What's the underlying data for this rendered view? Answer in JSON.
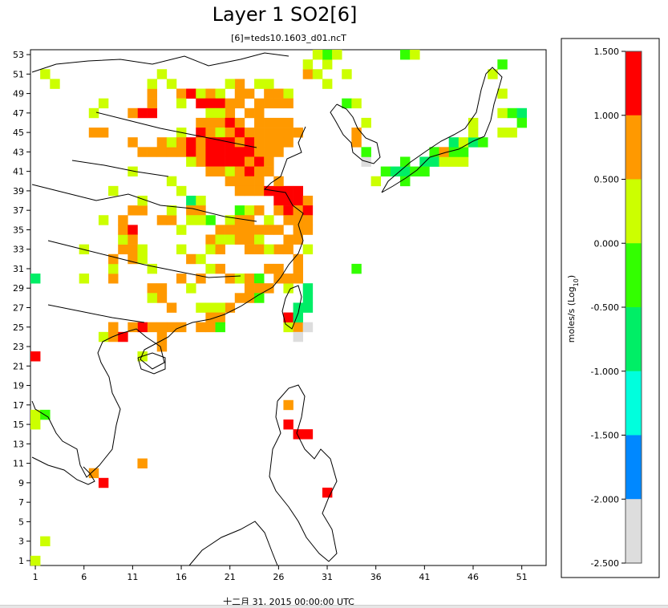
{
  "title": "Layer 1 SO2[6]",
  "subtitle": "[6]=teds10.1603_d01.ncT",
  "timestamp": "十二月 31, 2015 00:00:00 UTC",
  "legend": {
    "unit_label": "moles/s (Log",
    "unit_sub": "10",
    "unit_close": ")",
    "ticks": [
      "1.500",
      "1.000",
      "0.500",
      "0.000",
      "-0.500",
      "-1.000",
      "-1.500",
      "-2.000",
      "-2.500"
    ],
    "bins": [
      {
        "min": 1.0,
        "max": 1.5,
        "color": "#ff0000"
      },
      {
        "min": 0.5,
        "max": 1.0,
        "color": "#ff9900"
      },
      {
        "min": 0.0,
        "max": 0.5,
        "color": "#ccff00"
      },
      {
        "min": -0.5,
        "max": 0.0,
        "color": "#33ff00"
      },
      {
        "min": -1.0,
        "max": -0.5,
        "color": "#00ee66"
      },
      {
        "min": -1.5,
        "max": -1.0,
        "color": "#00ffdd"
      },
      {
        "min": -2.0,
        "max": -1.5,
        "color": "#0088ff"
      },
      {
        "min": -2.5,
        "max": -2.0,
        "color": "#dddddd"
      }
    ]
  },
  "chart_data": {
    "type": "heatmap",
    "x_ticks": [
      "1",
      "6",
      "11",
      "16",
      "21",
      "26",
      "31",
      "36",
      "41",
      "46",
      "51"
    ],
    "y_ticks": [
      "1",
      "3",
      "5",
      "7",
      "9",
      "11",
      "13",
      "15",
      "17",
      "19",
      "21",
      "23",
      "25",
      "27",
      "29",
      "31",
      "33",
      "35",
      "37",
      "39",
      "41",
      "43",
      "45",
      "47",
      "49",
      "51",
      "53"
    ],
    "x_range": [
      1,
      53
    ],
    "y_range": [
      1,
      53
    ],
    "cells": [
      [
        1,
        1,
        0.2
      ],
      [
        2,
        3,
        0.2
      ],
      [
        1,
        15,
        0.3
      ],
      [
        1,
        16,
        0.3
      ],
      [
        2,
        16,
        -0.3
      ],
      [
        1,
        22,
        1.2
      ],
      [
        1,
        30,
        -0.7
      ],
      [
        3,
        50,
        0.2
      ],
      [
        2,
        51,
        0.3
      ],
      [
        6,
        30,
        0.3
      ],
      [
        6,
        33,
        0.3
      ],
      [
        7,
        45,
        0.7
      ],
      [
        8,
        45,
        0.7
      ],
      [
        7,
        47,
        0.2
      ],
      [
        7,
        10,
        0.7
      ],
      [
        8,
        9,
        1.2
      ],
      [
        8,
        36,
        0.2
      ],
      [
        8,
        48,
        0.3
      ],
      [
        8,
        24,
        0.3
      ],
      [
        9,
        24,
        0.7
      ],
      [
        9,
        25,
        0.7
      ],
      [
        9,
        30,
        0.7
      ],
      [
        9,
        31,
        0.2
      ],
      [
        9,
        32,
        0.7
      ],
      [
        10,
        33,
        0.7
      ],
      [
        10,
        34,
        0.3
      ],
      [
        10,
        35,
        0.7
      ],
      [
        10,
        36,
        0.7
      ],
      [
        11,
        35,
        1.2
      ],
      [
        11,
        34,
        0.7
      ],
      [
        11,
        33,
        0.7
      ],
      [
        11,
        32,
        0.7
      ],
      [
        11,
        37,
        0.7
      ],
      [
        12,
        37,
        0.7
      ],
      [
        12,
        33,
        0.3
      ],
      [
        12,
        32,
        0.3
      ],
      [
        9,
        39,
        0.2
      ],
      [
        11,
        44,
        0.7
      ],
      [
        12,
        43,
        0.7
      ],
      [
        13,
        43,
        0.7
      ],
      [
        14,
        43,
        0.7
      ],
      [
        15,
        43,
        0.7
      ],
      [
        16,
        43,
        0.7
      ],
      [
        14,
        44,
        0.7
      ],
      [
        15,
        44,
        0.3
      ],
      [
        16,
        45,
        0.3
      ],
      [
        11,
        41,
        0.3
      ],
      [
        12,
        47,
        1.2
      ],
      [
        13,
        47,
        1.2
      ],
      [
        11,
        47,
        0.7
      ],
      [
        13,
        48,
        0.7
      ],
      [
        13,
        49,
        0.7
      ],
      [
        13,
        50,
        0.2
      ],
      [
        14,
        51,
        0.3
      ],
      [
        15,
        50,
        0.3
      ],
      [
        16,
        49,
        0.7
      ],
      [
        16,
        48,
        0.3
      ],
      [
        17,
        49,
        1.2
      ],
      [
        18,
        49,
        0.3
      ],
      [
        19,
        49,
        0.7
      ],
      [
        20,
        49,
        0.3
      ],
      [
        18,
        48,
        1.2
      ],
      [
        19,
        48,
        1.2
      ],
      [
        20,
        48,
        1.2
      ],
      [
        21,
        48,
        0.7
      ],
      [
        22,
        49,
        0.7
      ],
      [
        23,
        49,
        0.7
      ],
      [
        22,
        48,
        0.7
      ],
      [
        21,
        47,
        0.7
      ],
      [
        20,
        47,
        0.2
      ],
      [
        19,
        47,
        0.2
      ],
      [
        18,
        46,
        0.7
      ],
      [
        19,
        46,
        0.7
      ],
      [
        20,
        46,
        0.7
      ],
      [
        21,
        46,
        1.2
      ],
      [
        22,
        46,
        0.7
      ],
      [
        23,
        47,
        0.7
      ],
      [
        24,
        47,
        0.7
      ],
      [
        24,
        48,
        0.7
      ],
      [
        25,
        48,
        0.7
      ],
      [
        25,
        49,
        0.7
      ],
      [
        26,
        49,
        0.7
      ],
      [
        26,
        48,
        0.7
      ],
      [
        27,
        49,
        0.3
      ],
      [
        27,
        48,
        0.7
      ],
      [
        25,
        50,
        0.3
      ],
      [
        24,
        50,
        0.3
      ],
      [
        22,
        50,
        0.7
      ],
      [
        21,
        50,
        0.3
      ],
      [
        18,
        45,
        1.2
      ],
      [
        19,
        45,
        0.7
      ],
      [
        20,
        45,
        0.3
      ],
      [
        21,
        45,
        0.7
      ],
      [
        22,
        45,
        1.2
      ],
      [
        23,
        45,
        0.7
      ],
      [
        24,
        45,
        0.7
      ],
      [
        25,
        45,
        0.7
      ],
      [
        26,
        45,
        0.7
      ],
      [
        27,
        45,
        0.7
      ],
      [
        28,
        45,
        0.7
      ],
      [
        26,
        46,
        0.7
      ],
      [
        27,
        46,
        0.7
      ],
      [
        25,
        46,
        0.7
      ],
      [
        24,
        46,
        0.7
      ],
      [
        16,
        44,
        0.7
      ],
      [
        17,
        44,
        1.2
      ],
      [
        18,
        44,
        0.7
      ],
      [
        19,
        44,
        1.2
      ],
      [
        20,
        44,
        1.2
      ],
      [
        21,
        44,
        1.2
      ],
      [
        22,
        44,
        0.7
      ],
      [
        23,
        44,
        1.2
      ],
      [
        24,
        44,
        0.7
      ],
      [
        25,
        44,
        0.7
      ],
      [
        26,
        44,
        0.7
      ],
      [
        27,
        44,
        0.7
      ],
      [
        17,
        43,
        1.2
      ],
      [
        18,
        43,
        0.7
      ],
      [
        19,
        43,
        1.2
      ],
      [
        20,
        43,
        1.2
      ],
      [
        21,
        43,
        1.2
      ],
      [
        22,
        43,
        1.2
      ],
      [
        23,
        43,
        1.2
      ],
      [
        24,
        43,
        0.7
      ],
      [
        25,
        43,
        0.7
      ],
      [
        26,
        43,
        0.7
      ],
      [
        18,
        42,
        0.7
      ],
      [
        19,
        42,
        1.2
      ],
      [
        20,
        42,
        1.2
      ],
      [
        21,
        42,
        1.2
      ],
      [
        22,
        42,
        1.2
      ],
      [
        23,
        42,
        0.7
      ],
      [
        24,
        42,
        1.2
      ],
      [
        25,
        42,
        0.7
      ],
      [
        19,
        41,
        0.7
      ],
      [
        20,
        41,
        0.7
      ],
      [
        21,
        41,
        0.3
      ],
      [
        22,
        41,
        0.7
      ],
      [
        23,
        41,
        1.2
      ],
      [
        24,
        41,
        0.7
      ],
      [
        25,
        41,
        0.7
      ],
      [
        21,
        40,
        0.7
      ],
      [
        22,
        40,
        0.7
      ],
      [
        23,
        40,
        0.7
      ],
      [
        24,
        40,
        0.7
      ],
      [
        22,
        39,
        0.7
      ],
      [
        23,
        39,
        0.7
      ],
      [
        24,
        39,
        0.7
      ],
      [
        25,
        39,
        1.2
      ],
      [
        26,
        39,
        1.2
      ],
      [
        27,
        39,
        1.2
      ],
      [
        28,
        39,
        1.2
      ],
      [
        26,
        40,
        0.7
      ],
      [
        26,
        38,
        1.2
      ],
      [
        27,
        38,
        1.2
      ],
      [
        28,
        38,
        1.2
      ],
      [
        29,
        38,
        0.7
      ],
      [
        26,
        37,
        0.7
      ],
      [
        27,
        37,
        1.2
      ],
      [
        28,
        37,
        0.7
      ],
      [
        29,
        37,
        1.2
      ],
      [
        27,
        36,
        0.7
      ],
      [
        28,
        36,
        0.7
      ],
      [
        29,
        36,
        0.7
      ],
      [
        28,
        35,
        0.7
      ],
      [
        29,
        35,
        0.7
      ],
      [
        28,
        34,
        0.7
      ],
      [
        27,
        34,
        0.7
      ],
      [
        26,
        33,
        0.7
      ],
      [
        27,
        33,
        0.7
      ],
      [
        22,
        37,
        -0.3
      ],
      [
        23,
        37,
        0.3
      ],
      [
        24,
        37,
        0.7
      ],
      [
        21,
        36,
        0.3
      ],
      [
        22,
        36,
        0.7
      ],
      [
        23,
        36,
        0.7
      ],
      [
        25,
        36,
        0.2
      ],
      [
        20,
        35,
        0.7
      ],
      [
        21,
        35,
        0.7
      ],
      [
        22,
        35,
        0.7
      ],
      [
        23,
        35,
        0.7
      ],
      [
        24,
        35,
        0.7
      ],
      [
        25,
        35,
        0.7
      ],
      [
        26,
        35,
        0.7
      ],
      [
        19,
        34,
        0.7
      ],
      [
        20,
        34,
        0.3
      ],
      [
        21,
        34,
        0.3
      ],
      [
        22,
        34,
        0.7
      ],
      [
        23,
        34,
        0.7
      ],
      [
        24,
        34,
        0.3
      ],
      [
        19,
        33,
        0.3
      ],
      [
        20,
        33,
        0.7
      ],
      [
        23,
        33,
        0.7
      ],
      [
        24,
        33,
        0.7
      ],
      [
        25,
        33,
        0.3
      ],
      [
        17,
        38,
        -0.7
      ],
      [
        18,
        38,
        0.3
      ],
      [
        18,
        37,
        0.7
      ],
      [
        17,
        37,
        0.7
      ],
      [
        19,
        36,
        -0.3
      ],
      [
        18,
        36,
        0.3
      ],
      [
        17,
        36,
        0.3
      ],
      [
        16,
        35,
        0.2
      ],
      [
        16,
        33,
        0.3
      ],
      [
        17,
        32,
        0.7
      ],
      [
        18,
        32,
        0.3
      ],
      [
        19,
        31,
        0.3
      ],
      [
        20,
        31,
        0.7
      ],
      [
        21,
        30,
        0.7
      ],
      [
        22,
        30,
        0.3
      ],
      [
        23,
        30,
        0.7
      ],
      [
        24,
        30,
        -0.3
      ],
      [
        25,
        31,
        0.7
      ],
      [
        26,
        31,
        0.7
      ],
      [
        26,
        30,
        0.7
      ],
      [
        25,
        29,
        0.7
      ],
      [
        24,
        29,
        0.7
      ],
      [
        23,
        29,
        0.7
      ],
      [
        22,
        28,
        0.7
      ],
      [
        23,
        28,
        0.7
      ],
      [
        24,
        28,
        -0.3
      ],
      [
        21,
        27,
        0.7
      ],
      [
        20,
        27,
        0.3
      ],
      [
        19,
        27,
        0.3
      ],
      [
        18,
        27,
        0.3
      ],
      [
        19,
        26,
        0.7
      ],
      [
        20,
        26,
        0.7
      ],
      [
        18,
        25,
        0.7
      ],
      [
        19,
        25,
        0.7
      ],
      [
        20,
        25,
        -0.3
      ],
      [
        16,
        25,
        0.7
      ],
      [
        15,
        25,
        0.7
      ],
      [
        14,
        25,
        0.7
      ],
      [
        13,
        25,
        0.7
      ],
      [
        12,
        25,
        1.2
      ],
      [
        11,
        25,
        0.7
      ],
      [
        10,
        24,
        1.2
      ],
      [
        9,
        25,
        0.7
      ],
      [
        14,
        24,
        0.7
      ],
      [
        14,
        23,
        0.7
      ],
      [
        12,
        22,
        0.2
      ],
      [
        13,
        29,
        0.7
      ],
      [
        14,
        29,
        0.7
      ],
      [
        14,
        28,
        0.7
      ],
      [
        13,
        28,
        0.3
      ],
      [
        15,
        27,
        0.7
      ],
      [
        13,
        31,
        0.3
      ],
      [
        16,
        30,
        0.7
      ],
      [
        17,
        29,
        0.3
      ],
      [
        18,
        30,
        0.7
      ],
      [
        14,
        36,
        0.7
      ],
      [
        15,
        36,
        0.7
      ],
      [
        15,
        37,
        0.3
      ],
      [
        12,
        38,
        0.3
      ],
      [
        16,
        39,
        0.2
      ],
      [
        17,
        42,
        0.3
      ],
      [
        15,
        40,
        0.3
      ],
      [
        27,
        25,
        0.2
      ],
      [
        27,
        26,
        1.2
      ],
      [
        28,
        25,
        0.7
      ],
      [
        28,
        24,
        -2.2
      ],
      [
        29,
        25,
        -2.2
      ],
      [
        28,
        26,
        -0.7
      ],
      [
        28,
        27,
        -0.7
      ],
      [
        29,
        27,
        -0.7
      ],
      [
        29,
        28,
        -0.7
      ],
      [
        29,
        29,
        -0.7
      ],
      [
        27,
        29,
        0.3
      ],
      [
        27,
        30,
        0.7
      ],
      [
        28,
        30,
        0.7
      ],
      [
        28,
        31,
        0.7
      ],
      [
        28,
        32,
        0.7
      ],
      [
        29,
        33,
        0.3
      ],
      [
        34,
        31,
        -0.3
      ],
      [
        27,
        17,
        0.7
      ],
      [
        27,
        15,
        1.2
      ],
      [
        28,
        14,
        1.2
      ],
      [
        29,
        14,
        1.2
      ],
      [
        31,
        8,
        1.2
      ],
      [
        12,
        11,
        0.7
      ],
      [
        29,
        51,
        0.7
      ],
      [
        30,
        51,
        0.2
      ],
      [
        29,
        52,
        0.2
      ],
      [
        31,
        52,
        0.2
      ],
      [
        31,
        53,
        -0.3
      ],
      [
        32,
        53,
        0.3
      ],
      [
        30,
        53,
        0.3
      ],
      [
        31,
        50,
        0.3
      ],
      [
        33,
        51,
        0.2
      ],
      [
        33,
        48,
        -0.5
      ],
      [
        34,
        48,
        0.2
      ],
      [
        35,
        46,
        0.2
      ],
      [
        34,
        45,
        0.7
      ],
      [
        34,
        44,
        0.7
      ],
      [
        35,
        42,
        -2.2
      ],
      [
        35,
        43,
        -0.3
      ],
      [
        39,
        53,
        -0.3
      ],
      [
        40,
        53,
        0.2
      ],
      [
        37,
        41,
        -0.3
      ],
      [
        36,
        40,
        0.2
      ],
      [
        38,
        41,
        -0.7
      ],
      [
        39,
        41,
        -0.7
      ],
      [
        39,
        42,
        -0.3
      ],
      [
        39,
        40,
        -0.3
      ],
      [
        40,
        41,
        -0.3
      ],
      [
        41,
        42,
        -0.7
      ],
      [
        42,
        42,
        -0.7
      ],
      [
        43,
        42,
        0.2
      ],
      [
        44,
        42,
        0.2
      ],
      [
        41,
        41,
        -0.3
      ],
      [
        42,
        43,
        -0.3
      ],
      [
        43,
        43,
        0.7
      ],
      [
        45,
        42,
        0.3
      ],
      [
        44,
        43,
        -0.3
      ],
      [
        45,
        43,
        -0.3
      ],
      [
        44,
        44,
        -0.7
      ],
      [
        45,
        44,
        0.3
      ],
      [
        46,
        44,
        -0.7
      ],
      [
        47,
        44,
        -0.3
      ],
      [
        46,
        45,
        0.3
      ],
      [
        46,
        46,
        0.2
      ],
      [
        49,
        45,
        0.2
      ],
      [
        50,
        45,
        0.3
      ],
      [
        50,
        47,
        -0.3
      ],
      [
        51,
        47,
        -0.7
      ],
      [
        49,
        47,
        0.2
      ],
      [
        51,
        46,
        -0.3
      ],
      [
        49,
        49,
        0.2
      ],
      [
        48,
        51,
        0.3
      ],
      [
        49,
        52,
        -0.3
      ]
    ]
  }
}
